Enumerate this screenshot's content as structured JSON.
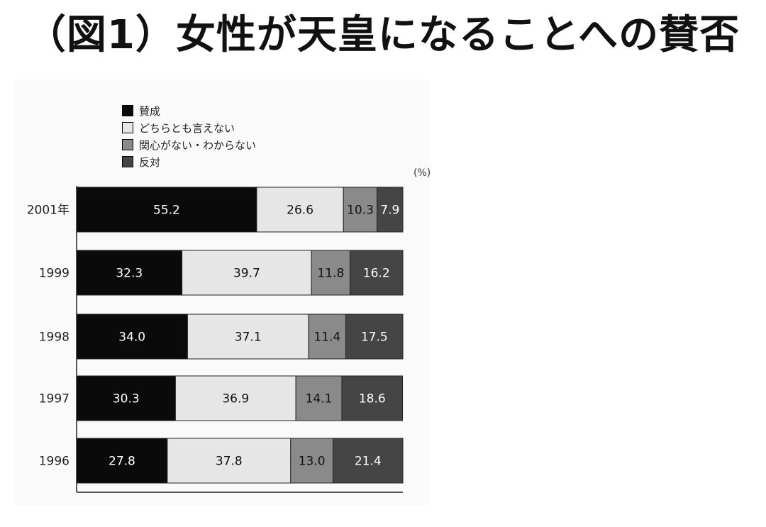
{
  "title": "（図1）女性が天皇になることへの賛否",
  "unit": "(%)",
  "colors": {
    "賛成": "#0a0a0a",
    "どちらとも言えない": "#e6e6e6",
    "関心がない・わからない": "#8a8a8a",
    "反対": "#454545"
  },
  "chart_data": {
    "type": "bar",
    "orientation": "horizontal-stacked",
    "categories": [
      "2001年",
      "1999",
      "1998",
      "1997",
      "1996"
    ],
    "series": [
      {
        "name": "賛成",
        "values": [
          55.2,
          32.3,
          34.0,
          30.3,
          27.8
        ],
        "labels": [
          "55.2",
          "32.3",
          "34.0",
          "30.3",
          "27.8"
        ]
      },
      {
        "name": "どちらとも言えない",
        "values": [
          26.6,
          39.7,
          37.1,
          36.9,
          37.8
        ],
        "labels": [
          "26.6",
          "39.7",
          "37.1",
          "36.9",
          "37.8"
        ]
      },
      {
        "name": "関心がない・わからない",
        "values": [
          10.3,
          11.8,
          11.4,
          14.1,
          13.0
        ],
        "labels": [
          "10.3",
          "11.8",
          "11.4",
          "14.1",
          "13.0"
        ]
      },
      {
        "name": "反対",
        "values": [
          7.9,
          16.2,
          17.5,
          18.6,
          21.4
        ],
        "labels": [
          "7.9",
          "16.2",
          "17.5",
          "18.6",
          "21.4"
        ]
      }
    ],
    "xlim": [
      0,
      100
    ],
    "legend": "top-left",
    "grid": false
  }
}
